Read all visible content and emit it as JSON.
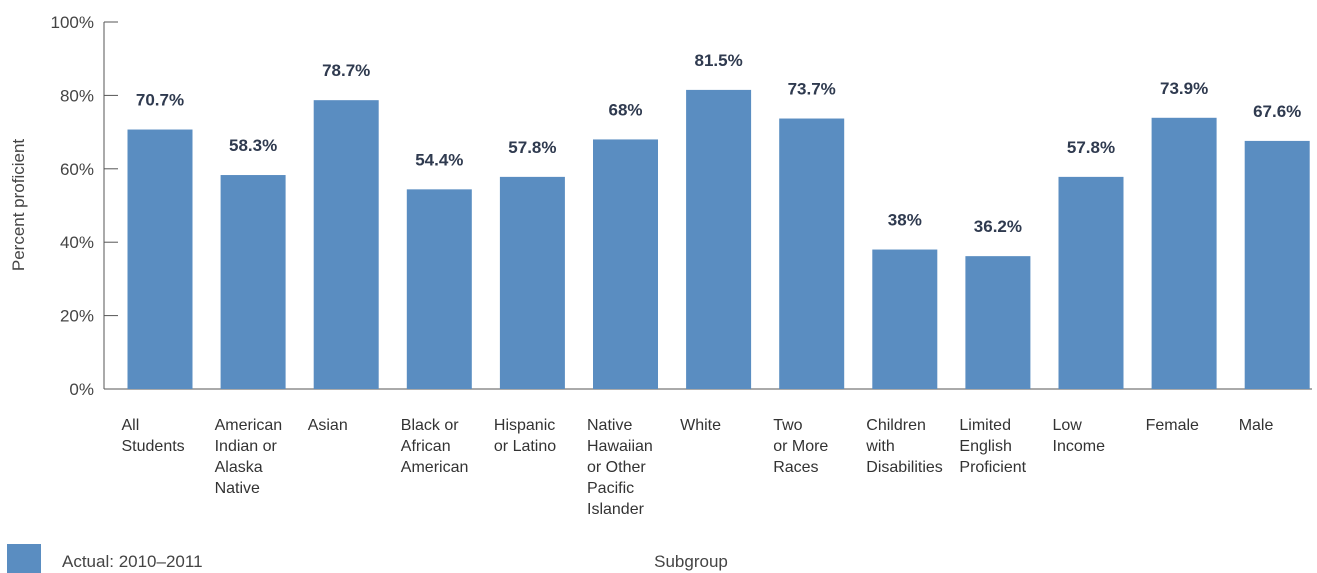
{
  "chart_data": {
    "type": "bar",
    "ylabel": "Percent proficient",
    "xlabel": "Subgroup",
    "ylim": [
      0,
      100
    ],
    "yticks": [
      "0%",
      "20%",
      "40%",
      "60%",
      "80%",
      "100%"
    ],
    "grid": false,
    "legend_position": "bottom-left",
    "bar_color": "#5a8dc1",
    "categories": [
      [
        "All",
        "Students"
      ],
      [
        "American",
        "Indian or",
        "Alaska",
        "Native"
      ],
      [
        "Asian"
      ],
      [
        "Black or",
        "African",
        "American"
      ],
      [
        "Hispanic",
        "or Latino"
      ],
      [
        "Native",
        "Hawaiian",
        "or Other",
        "Pacific",
        "Islander"
      ],
      [
        "White"
      ],
      [
        "Two",
        "or More",
        "Races"
      ],
      [
        "Children",
        "with",
        "Disabilities"
      ],
      [
        "Limited",
        "English",
        "Proficient"
      ],
      [
        "Low",
        "Income"
      ],
      [
        "Female"
      ],
      [
        "Male"
      ]
    ],
    "series": [
      {
        "name": "Actual: 2010–2011",
        "values": [
          70.7,
          58.3,
          78.7,
          54.4,
          57.8,
          68,
          81.5,
          73.7,
          38,
          36.2,
          57.8,
          73.9,
          67.6
        ],
        "labels": [
          "70.7%",
          "58.3%",
          "78.7%",
          "54.4%",
          "57.8%",
          "68%",
          "81.5%",
          "73.7%",
          "38%",
          "36.2%",
          "57.8%",
          "73.9%",
          "67.6%"
        ]
      }
    ]
  }
}
